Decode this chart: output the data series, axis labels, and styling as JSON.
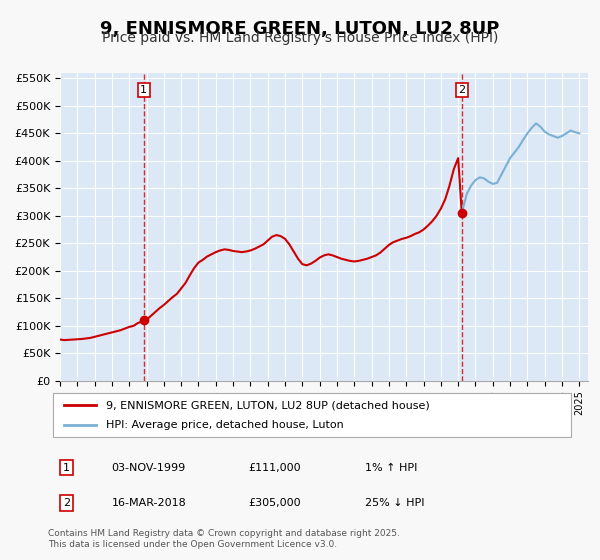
{
  "title": "9, ENNISMORE GREEN, LUTON, LU2 8UP",
  "subtitle": "Price paid vs. HM Land Registry's House Price Index (HPI)",
  "title_fontsize": 13,
  "subtitle_fontsize": 10,
  "bg_color": "#f0f4ff",
  "plot_bg_color": "#dce8f5",
  "grid_color": "#ffffff",
  "ylim": [
    0,
    560000
  ],
  "yticks": [
    0,
    50000,
    100000,
    150000,
    200000,
    250000,
    300000,
    350000,
    400000,
    450000,
    500000,
    550000
  ],
  "ytick_labels": [
    "£0",
    "£50K",
    "£100K",
    "£150K",
    "£200K",
    "£250K",
    "£300K",
    "£350K",
    "£400K",
    "£450K",
    "£500K",
    "£550K"
  ],
  "xlim_start": 1995.0,
  "xlim_end": 2025.5,
  "marker1_x": 1999.84,
  "marker1_y": 111000,
  "marker2_x": 2018.21,
  "marker2_y": 305000,
  "vline1_x": 1999.84,
  "vline2_x": 2018.21,
  "legend_label_red": "9, ENNISMORE GREEN, LUTON, LU2 8UP (detached house)",
  "legend_label_blue": "HPI: Average price, detached house, Luton",
  "table_row1": [
    "1",
    "03-NOV-1999",
    "£111,000",
    "1% ↑ HPI"
  ],
  "table_row2": [
    "2",
    "16-MAR-2018",
    "£305,000",
    "25% ↓ HPI"
  ],
  "footer": "Contains HM Land Registry data © Crown copyright and database right 2025.\nThis data is licensed under the Open Government Licence v3.0.",
  "red_color": "#cc0000",
  "blue_color": "#7ab0d4",
  "red_hpi": {
    "x": [
      1995.0,
      1995.25,
      1995.5,
      1995.75,
      1996.0,
      1996.25,
      1996.5,
      1996.75,
      1997.0,
      1997.25,
      1997.5,
      1997.75,
      1998.0,
      1998.25,
      1998.5,
      1998.75,
      1999.0,
      1999.25,
      1999.5,
      1999.75,
      2000.0,
      2000.25,
      2000.5,
      2000.75,
      2001.0,
      2001.25,
      2001.5,
      2001.75,
      2002.0,
      2002.25,
      2002.5,
      2002.75,
      2003.0,
      2003.25,
      2003.5,
      2003.75,
      2004.0,
      2004.25,
      2004.5,
      2004.75,
      2005.0,
      2005.25,
      2005.5,
      2005.75,
      2006.0,
      2006.25,
      2006.5,
      2006.75,
      2007.0,
      2007.25,
      2007.5,
      2007.75,
      2008.0,
      2008.25,
      2008.5,
      2008.75,
      2009.0,
      2009.25,
      2009.5,
      2009.75,
      2010.0,
      2010.25,
      2010.5,
      2010.75,
      2011.0,
      2011.25,
      2011.5,
      2011.75,
      2012.0,
      2012.25,
      2012.5,
      2012.75,
      2013.0,
      2013.25,
      2013.5,
      2013.75,
      2014.0,
      2014.25,
      2014.5,
      2014.75,
      2015.0,
      2015.25,
      2015.5,
      2015.75,
      2016.0,
      2016.25,
      2016.5,
      2016.75,
      2017.0,
      2017.25,
      2017.5,
      2017.75,
      2018.0,
      2018.21
    ],
    "y": [
      75000,
      74000,
      74500,
      75000,
      75500,
      76000,
      77000,
      78000,
      80000,
      82000,
      84000,
      86000,
      88000,
      90000,
      92000,
      95000,
      98000,
      100000,
      105000,
      108000,
      111000,
      118000,
      125000,
      132000,
      138000,
      145000,
      152000,
      158000,
      168000,
      178000,
      192000,
      205000,
      215000,
      220000,
      226000,
      230000,
      234000,
      237000,
      239000,
      238000,
      236000,
      235000,
      234000,
      235000,
      237000,
      240000,
      244000,
      248000,
      255000,
      262000,
      265000,
      263000,
      258000,
      248000,
      235000,
      222000,
      212000,
      210000,
      213000,
      218000,
      224000,
      228000,
      230000,
      228000,
      225000,
      222000,
      220000,
      218000,
      217000,
      218000,
      220000,
      222000,
      225000,
      228000,
      233000,
      240000,
      247000,
      252000,
      255000,
      258000,
      260000,
      263000,
      267000,
      270000,
      275000,
      282000,
      290000,
      300000,
      313000,
      330000,
      355000,
      385000,
      405000,
      305000
    ]
  },
  "blue_hpi": {
    "x": [
      2018.21,
      2018.5,
      2018.75,
      2019.0,
      2019.25,
      2019.5,
      2019.75,
      2020.0,
      2020.25,
      2020.5,
      2020.75,
      2021.0,
      2021.25,
      2021.5,
      2021.75,
      2022.0,
      2022.25,
      2022.5,
      2022.75,
      2023.0,
      2023.25,
      2023.5,
      2023.75,
      2024.0,
      2024.25,
      2024.5,
      2024.75,
      2025.0
    ],
    "y": [
      305000,
      340000,
      355000,
      365000,
      370000,
      368000,
      362000,
      358000,
      360000,
      375000,
      390000,
      405000,
      415000,
      425000,
      438000,
      450000,
      460000,
      468000,
      462000,
      453000,
      448000,
      445000,
      442000,
      445000,
      450000,
      455000,
      452000,
      450000
    ]
  }
}
